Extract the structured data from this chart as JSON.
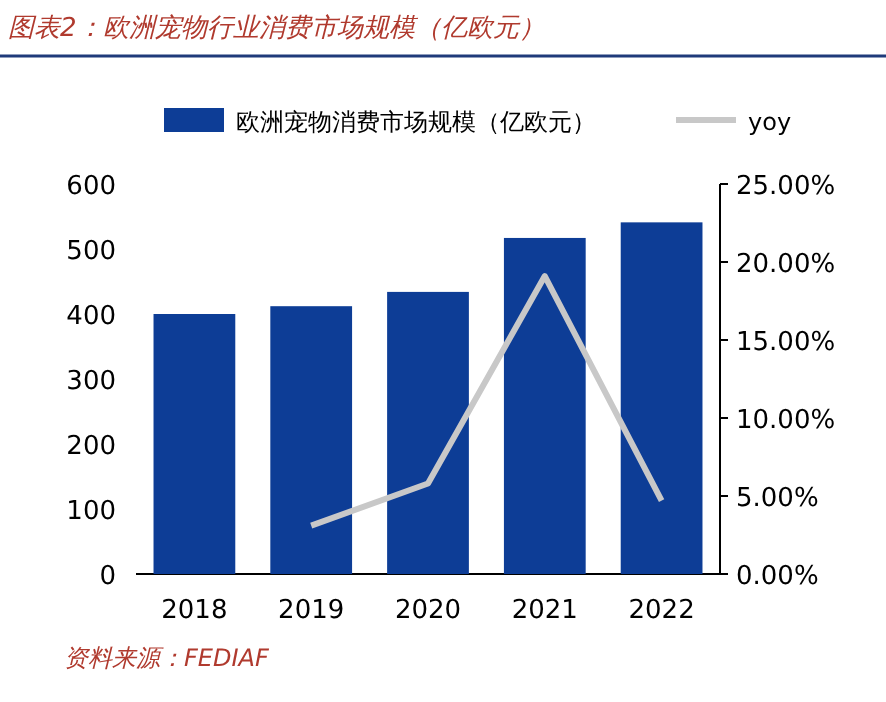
{
  "chart_data": {
    "type": "bar",
    "title": "图表2：欧洲宠物行业消费市场规模（亿欧元）",
    "categories": [
      "2018",
      "2019",
      "2020",
      "2021",
      "2022"
    ],
    "series": [
      {
        "name": "欧洲宠物消费市场规模（亿欧元）",
        "color": "#0d3d96",
        "values": [
          400,
          412,
          434,
          517,
          541
        ]
      },
      {
        "name": "yoy",
        "type": "line",
        "axis": "y2",
        "color": "#c8c8c8",
        "values": [
          null,
          3.1,
          5.8,
          19.1,
          4.7
        ]
      }
    ],
    "ylim": [
      0,
      600
    ],
    "yticks": [
      0,
      100,
      200,
      300,
      400,
      500,
      600
    ],
    "y2lim": [
      0,
      25
    ],
    "y2ticks": [
      {
        "value": 0,
        "label": "0.00%"
      },
      {
        "value": 5,
        "label": "5.00%"
      },
      {
        "value": 10,
        "label": "10.00%"
      },
      {
        "value": 15,
        "label": "15.00%"
      },
      {
        "value": 20,
        "label": "20.00%"
      },
      {
        "value": 25,
        "label": "25.00%"
      }
    ],
    "legend": "top",
    "marker": "none",
    "annotations": [
      "资料来源：FEDIAF"
    ]
  }
}
